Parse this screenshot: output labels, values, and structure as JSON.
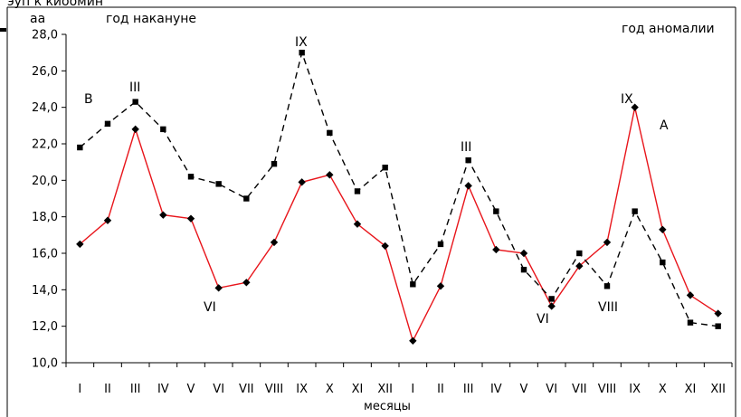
{
  "chart_data": {
    "type": "line",
    "top_cut_text": "эуп к киоомин",
    "xlabel": "месяцы",
    "ylabel": "",
    "ylim": [
      10,
      28
    ],
    "yticks": [
      "10,0",
      "12,0",
      "14,0",
      "16,0",
      "18,0",
      "20,0",
      "22,0",
      "24,0",
      "26,0",
      "28,0"
    ],
    "categories": [
      "I",
      "II",
      "III",
      "IV",
      "V",
      "VI",
      "VII",
      "VIII",
      "IX",
      "X",
      "XI",
      "XII",
      "I",
      "II",
      "III",
      "IV",
      "V",
      "VI",
      "VII",
      "VIII",
      "IX",
      "X",
      "XI",
      "XII"
    ],
    "series": [
      {
        "key": "anomaly",
        "color": "#e8151b",
        "style": "solid",
        "marker": "diamond",
        "values": [
          16.5,
          17.8,
          22.8,
          18.1,
          17.9,
          14.1,
          14.4,
          16.6,
          19.9,
          20.3,
          17.6,
          16.4,
          11.2,
          14.2,
          19.7,
          16.2,
          16.0,
          13.1,
          15.3,
          16.6,
          24.0,
          17.3,
          13.7,
          12.7
        ]
      },
      {
        "key": "prev",
        "color": "#000000",
        "style": "dashed",
        "marker": "square",
        "values": [
          21.8,
          23.1,
          24.3,
          22.8,
          20.2,
          19.8,
          19.0,
          20.9,
          27.0,
          22.6,
          19.4,
          20.7,
          14.3,
          16.5,
          21.1,
          18.3,
          15.1,
          13.5,
          16.0,
          14.2,
          18.3,
          15.5,
          12.2,
          12.0
        ]
      }
    ],
    "annotations": [
      {
        "key": "aa",
        "text": "аа"
      },
      {
        "key": "prev_year",
        "text": "год накануне"
      },
      {
        "key": "anomaly_year",
        "text": "год аномалии"
      },
      {
        "key": "B",
        "text": "В"
      },
      {
        "key": "A",
        "text": "А"
      },
      {
        "key": "III_1",
        "text": "III"
      },
      {
        "key": "IX_1",
        "text": "IX"
      },
      {
        "key": "VI_1",
        "text": "VI"
      },
      {
        "key": "III_2",
        "text": "III"
      },
      {
        "key": "VI_2",
        "text": "VI"
      },
      {
        "key": "VIII_2",
        "text": "VIII"
      },
      {
        "key": "IX_2",
        "text": "IX"
      }
    ]
  }
}
